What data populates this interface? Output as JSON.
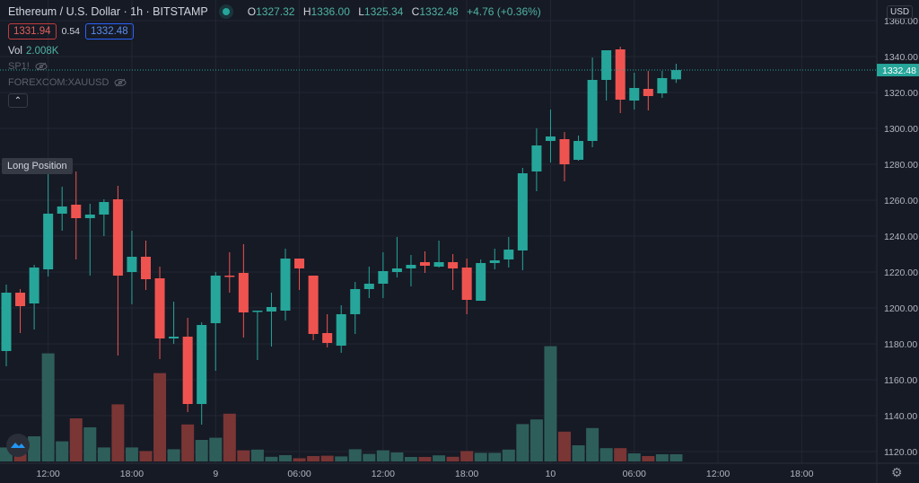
{
  "header": {
    "title": "Ethereum / U.S. Dollar · 1h · BITSTAMP",
    "ohlc": {
      "o_label": "O",
      "o": "1327.32",
      "h_label": "H",
      "h": "1336.00",
      "l_label": "L",
      "l": "1325.34",
      "c_label": "C",
      "c": "1332.48",
      "change": "+4.76 (+0.36%)"
    },
    "bid": "1331.94",
    "spread": "0.54",
    "ask": "1332.48",
    "vol_label": "Vol",
    "vol_value": "2.008K",
    "indicators": [
      {
        "label": "SP1!",
        "icon": "eye-off-icon"
      },
      {
        "label": "FOREXCOM:XAUUSD",
        "icon": "eye-off-icon"
      }
    ],
    "collapse_icon": "chevron-up-icon"
  },
  "tooltip": "Long Position",
  "axis": {
    "currency": "USD",
    "settings_icon": "gear-icon"
  },
  "colors": {
    "up": "#26a69a",
    "down": "#ef5350",
    "vol_up": "#2e5e5a",
    "vol_down": "#7a3535",
    "background": "#161a25",
    "grid": "#232733"
  },
  "chart_data": {
    "type": "candlestick",
    "interval": "1h",
    "ylim": [
      1110,
      1365
    ],
    "grid": true,
    "y_ticks": [
      "1360.00",
      "1340.00",
      "1320.00",
      "1300.00",
      "1280.00",
      "1260.00",
      "1240.00",
      "1220.00",
      "1200.00",
      "1180.00",
      "1160.00",
      "1140.00",
      "1120.00"
    ],
    "x_ticks": [
      {
        "label": "12:00",
        "t": "8 12:00"
      },
      {
        "label": "18:00",
        "t": "8 18:00"
      },
      {
        "label": "9",
        "t": "9 00:00"
      },
      {
        "label": "06:00",
        "t": "9 06:00"
      },
      {
        "label": "12:00",
        "t": "9 12:00"
      },
      {
        "label": "18:00",
        "t": "9 18:00"
      },
      {
        "label": "10",
        "t": "10 00:00"
      },
      {
        "label": "06:00",
        "t": "10 06:00"
      },
      {
        "label": "12:00",
        "t": "10 12:00"
      },
      {
        "label": "18:00",
        "t": "10 18:00"
      }
    ],
    "last_price": "1332.48",
    "columns": [
      "time",
      "open",
      "high",
      "low",
      "close",
      "volume_k"
    ],
    "candles": [
      [
        "8 09:00",
        1176,
        1213,
        1167.5,
        1208.5,
        3.9
      ],
      [
        "8 10:00",
        1208.5,
        1210.5,
        1186,
        1201,
        2.2
      ],
      [
        "8 11:00",
        1202.5,
        1224,
        1188,
        1222.5,
        7.0
      ],
      [
        "8 12:00",
        1221.5,
        1275,
        1217.5,
        1252.5,
        30.1
      ],
      [
        "8 13:00",
        1252.5,
        1267.5,
        1243,
        1256.5,
        5.6
      ],
      [
        "8 14:00",
        1257.5,
        1276,
        1227,
        1250,
        12.0
      ],
      [
        "8 15:00",
        1250,
        1258,
        1218,
        1252,
        9.5
      ],
      [
        "8 16:00",
        1252,
        1260.5,
        1240,
        1259,
        3.9
      ],
      [
        "8 17:00",
        1260.5,
        1268,
        1173.5,
        1218,
        15.9
      ],
      [
        "8 18:00",
        1220,
        1243,
        1202,
        1228.5,
        3.9
      ],
      [
        "8 19:00",
        1228.5,
        1237.5,
        1210,
        1216,
        2.9
      ],
      [
        "8 20:00",
        1216.5,
        1223,
        1171.5,
        1183,
        24.6
      ],
      [
        "8 21:00",
        1183,
        1203.5,
        1180,
        1184,
        3.4
      ],
      [
        "8 22:00",
        1184,
        1194.5,
        1142,
        1146.5,
        10.3
      ],
      [
        "8 23:00",
        1146.5,
        1192,
        1135,
        1190.5,
        6.0
      ],
      [
        "9 00:00",
        1191.5,
        1220,
        1165,
        1218,
        6.6
      ],
      [
        "9 01:00",
        1218,
        1231,
        1208.5,
        1217.5,
        13.3
      ],
      [
        "9 02:00",
        1219.5,
        1235.5,
        1183.5,
        1197.5,
        3.1
      ],
      [
        "9 03:00",
        1198,
        1198.5,
        1171,
        1198.5,
        3.3
      ],
      [
        "9 04:00",
        1198,
        1208.5,
        1178.5,
        1200.5,
        1.3
      ],
      [
        "9 05:00",
        1198.5,
        1233,
        1193,
        1227.5,
        1.75
      ],
      [
        "9 06:00",
        1227.5,
        1227.5,
        1210,
        1222,
        0.9
      ],
      [
        "9 07:00",
        1218,
        1218,
        1182,
        1185.5,
        1.5
      ],
      [
        "9 08:00",
        1186,
        1196.5,
        1178,
        1180.5,
        1.6
      ],
      [
        "9 09:00",
        1179,
        1201.5,
        1175,
        1196.5,
        1.4
      ],
      [
        "9 10:00",
        1196.5,
        1214.5,
        1185.5,
        1210.5,
        3.4
      ],
      [
        "9 11:00",
        1210.5,
        1223,
        1205.5,
        1213.5,
        2.1
      ],
      [
        "9 12:00",
        1213.5,
        1231,
        1205.5,
        1220.5,
        3.1
      ],
      [
        "9 13:00",
        1220,
        1239.5,
        1217,
        1222,
        2.5
      ],
      [
        "9 14:00",
        1222,
        1229.5,
        1212,
        1224,
        1.25
      ],
      [
        "9 15:00",
        1225.5,
        1231.5,
        1219.5,
        1223.5,
        1.25
      ],
      [
        "9 16:00",
        1223,
        1237.5,
        1222.5,
        1225.5,
        1.7
      ],
      [
        "9 17:00",
        1225.5,
        1230,
        1210,
        1222,
        1.3
      ],
      [
        "9 18:00",
        1222.5,
        1227.5,
        1196.5,
        1204.5,
        2.9
      ],
      [
        "9 19:00",
        1204,
        1227,
        1204,
        1225,
        2.4
      ],
      [
        "9 20:00",
        1225,
        1233,
        1221.5,
        1226.5,
        2.4
      ],
      [
        "9 21:00",
        1227,
        1239.5,
        1222.5,
        1232.5,
        3.3
      ],
      [
        "9 22:00",
        1232,
        1278,
        1221,
        1275,
        10.4
      ],
      [
        "9 23:00",
        1276,
        1300,
        1265,
        1290.5,
        11.7
      ],
      [
        "10 00:00",
        1293,
        1310.5,
        1281,
        1295.5,
        32.1
      ],
      [
        "10 01:00",
        1294,
        1298,
        1270.5,
        1280,
        8.3
      ],
      [
        "10 02:00",
        1282.5,
        1296,
        1282,
        1293,
        4.5
      ],
      [
        "10 03:00",
        1293,
        1339.5,
        1289.5,
        1327,
        9.3
      ],
      [
        "10 04:00",
        1327,
        1343.5,
        1315.5,
        1343.5,
        3.7
      ],
      [
        "10 05:00",
        1344,
        1345.5,
        1308.5,
        1316,
        3.7
      ],
      [
        "10 06:00",
        1315.5,
        1331,
        1310.5,
        1322.5,
        2.25
      ],
      [
        "10 07:00",
        1322,
        1332,
        1310,
        1318,
        1.5
      ],
      [
        "10 08:00",
        1319.5,
        1332,
        1317,
        1328,
        2.0
      ],
      [
        "10 09:00",
        1327.32,
        1336.0,
        1325.34,
        1332.48,
        2.008
      ]
    ]
  }
}
